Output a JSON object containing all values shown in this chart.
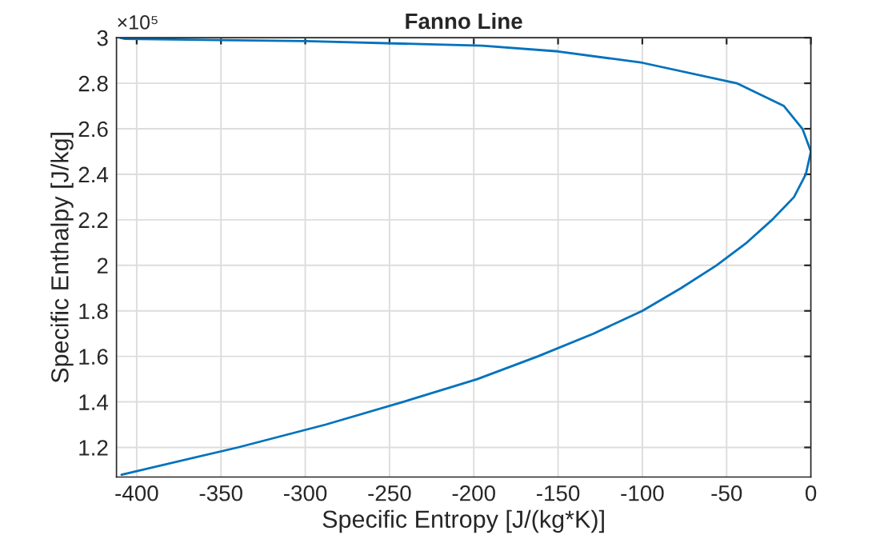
{
  "chart_data": {
    "type": "line",
    "title": "Fanno Line",
    "xlabel": "Specific Entropy [J/(kg*K)]",
    "ylabel": "Specific Enthalpy [J/kg]",
    "annotations": [
      "×10⁵"
    ],
    "series": [
      {
        "color": "#0072bd",
        "x": [
          -410,
          -407,
          -300,
          -195,
          -150,
          -100,
          -44,
          -16,
          -5,
          0,
          -3,
          -10,
          -23,
          -38,
          -56,
          -77,
          -100,
          -129,
          -162,
          -198,
          -242,
          -288,
          -340,
          -409
        ],
        "values": [
          3.0,
          2.995,
          2.985,
          2.965,
          2.94,
          2.89,
          2.8,
          2.7,
          2.6,
          2.5,
          2.4,
          2.3,
          2.2,
          2.1,
          2.0,
          1.9,
          1.8,
          1.7,
          1.6,
          1.5,
          1.4,
          1.3,
          1.2,
          1.08
        ]
      }
    ],
    "xlim": [
      -412,
      0
    ],
    "ylim": [
      1.07,
      3
    ],
    "xticks": [
      -400,
      -350,
      -300,
      -250,
      -200,
      -150,
      -100,
      -50,
      0
    ],
    "yticks": [
      1.2,
      1.4,
      1.6,
      1.8,
      2,
      2.2,
      2.4,
      2.6,
      2.8,
      3
    ],
    "grid": true,
    "legend": false,
    "marker": "none",
    "line_style": "solid"
  }
}
